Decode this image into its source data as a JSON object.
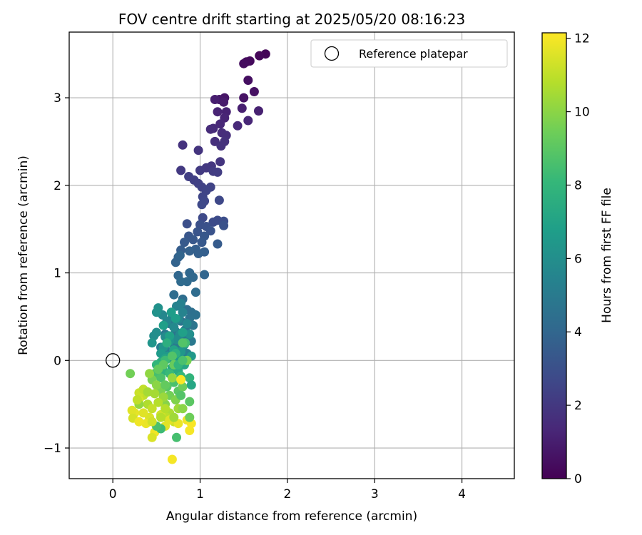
{
  "chart_data": {
    "type": "scatter",
    "title": "FOV centre drift starting at 2025/05/20 08:16:23",
    "xlabel": "Angular distance from reference (arcmin)",
    "ylabel": "Rotation from reference (arcmin)",
    "xlim": [
      -0.5,
      4.6
    ],
    "ylim": [
      -1.35,
      3.75
    ],
    "xticks": [
      0,
      1,
      2,
      3,
      4
    ],
    "yticks": [
      -1,
      0,
      1,
      2,
      3
    ],
    "grid": true,
    "legend": {
      "placement": "top-right",
      "entries": [
        "Reference platepar"
      ]
    },
    "reference_point": {
      "name": "Reference platepar",
      "x": 0.0,
      "y": 0.0
    },
    "colorbar": {
      "label": "Hours from first FF file",
      "range": [
        0,
        12.15
      ],
      "ticks": [
        0,
        2,
        4,
        6,
        8,
        10,
        12
      ],
      "colormap": "viridis"
    },
    "colormap_stops": [
      "#440154",
      "#482878",
      "#3e4989",
      "#31688e",
      "#26828e",
      "#1f9e89",
      "#35b779",
      "#6ece58",
      "#b5de2b",
      "#fde725"
    ],
    "point_columns": [
      "x",
      "y",
      "hours"
    ],
    "points": [
      [
        1.75,
        3.5,
        0.1
      ],
      [
        1.68,
        3.48,
        0.2
      ],
      [
        1.57,
        3.42,
        0.3
      ],
      [
        1.53,
        3.41,
        0.35
      ],
      [
        1.5,
        3.39,
        0.4
      ],
      [
        1.55,
        3.2,
        0.5
      ],
      [
        1.62,
        3.07,
        0.55
      ],
      [
        1.5,
        3.0,
        0.6
      ],
      [
        1.28,
        3.0,
        0.7
      ],
      [
        1.22,
        2.98,
        0.8
      ],
      [
        1.27,
        2.95,
        0.9
      ],
      [
        1.17,
        2.98,
        1.0
      ],
      [
        1.48,
        2.88,
        1.05
      ],
      [
        1.67,
        2.85,
        1.1
      ],
      [
        1.3,
        2.84,
        1.15
      ],
      [
        1.2,
        2.84,
        1.2
      ],
      [
        1.28,
        2.77,
        1.25
      ],
      [
        1.55,
        2.74,
        1.3
      ],
      [
        1.23,
        2.7,
        1.35
      ],
      [
        1.43,
        2.68,
        1.4
      ],
      [
        1.15,
        2.65,
        1.45
      ],
      [
        1.12,
        2.64,
        1.5
      ],
      [
        1.25,
        2.6,
        1.55
      ],
      [
        1.3,
        2.57,
        1.6
      ],
      [
        1.17,
        2.5,
        1.65
      ],
      [
        1.28,
        2.5,
        1.7
      ],
      [
        1.24,
        2.45,
        1.75
      ],
      [
        0.8,
        2.46,
        1.8
      ],
      [
        0.98,
        2.4,
        1.85
      ],
      [
        1.23,
        2.27,
        1.9
      ],
      [
        1.13,
        2.22,
        1.95
      ],
      [
        1.07,
        2.2,
        2.0
      ],
      [
        0.78,
        2.17,
        2.05
      ],
      [
        1.0,
        2.17,
        2.1
      ],
      [
        1.15,
        2.16,
        2.15
      ],
      [
        1.2,
        2.15,
        2.2
      ],
      [
        0.87,
        2.1,
        2.25
      ],
      [
        0.93,
        2.06,
        2.3
      ],
      [
        0.98,
        2.02,
        2.35
      ],
      [
        1.02,
        1.98,
        2.4
      ],
      [
        1.12,
        1.98,
        2.45
      ],
      [
        1.07,
        1.94,
        2.5
      ],
      [
        1.03,
        1.87,
        2.55
      ],
      [
        1.05,
        1.82,
        2.6
      ],
      [
        1.22,
        1.83,
        2.65
      ],
      [
        1.02,
        1.78,
        2.7
      ],
      [
        1.03,
        1.63,
        2.75
      ],
      [
        1.2,
        1.6,
        2.8
      ],
      [
        1.15,
        1.58,
        2.85
      ],
      [
        1.27,
        1.59,
        2.9
      ],
      [
        0.85,
        1.56,
        2.95
      ],
      [
        1.0,
        1.55,
        3.0
      ],
      [
        1.07,
        1.53,
        3.05
      ],
      [
        1.27,
        1.54,
        3.1
      ],
      [
        1.12,
        1.48,
        3.15
      ],
      [
        0.97,
        1.47,
        3.2
      ],
      [
        0.87,
        1.42,
        3.25
      ],
      [
        1.05,
        1.42,
        3.3
      ],
      [
        0.92,
        1.38,
        3.35
      ],
      [
        1.02,
        1.35,
        3.4
      ],
      [
        0.82,
        1.35,
        3.45
      ],
      [
        1.2,
        1.33,
        3.5
      ],
      [
        0.78,
        1.26,
        3.55
      ],
      [
        0.95,
        1.27,
        3.6
      ],
      [
        1.05,
        1.24,
        3.65
      ],
      [
        0.98,
        1.22,
        3.7
      ],
      [
        0.88,
        1.25,
        3.75
      ],
      [
        0.75,
        1.18,
        3.8
      ],
      [
        0.72,
        1.12,
        3.85
      ],
      [
        0.77,
        1.2,
        3.9
      ],
      [
        1.05,
        0.98,
        3.95
      ],
      [
        0.75,
        0.97,
        4.0
      ],
      [
        0.88,
        1.0,
        4.05
      ],
      [
        0.92,
        0.95,
        4.1
      ],
      [
        0.85,
        0.9,
        4.15
      ],
      [
        0.78,
        0.9,
        4.2
      ],
      [
        0.95,
        0.78,
        4.25
      ],
      [
        0.7,
        0.75,
        4.3
      ],
      [
        0.8,
        0.7,
        4.35
      ],
      [
        0.85,
        0.58,
        4.4
      ],
      [
        0.9,
        0.55,
        4.45
      ],
      [
        0.95,
        0.52,
        4.5
      ],
      [
        0.88,
        0.48,
        4.55
      ],
      [
        0.78,
        0.45,
        4.6
      ],
      [
        0.65,
        0.42,
        4.65
      ],
      [
        0.92,
        0.4,
        4.7
      ],
      [
        0.83,
        0.35,
        4.75
      ],
      [
        0.72,
        0.33,
        4.8
      ],
      [
        0.6,
        0.3,
        4.85
      ],
      [
        0.82,
        0.25,
        4.9
      ],
      [
        0.9,
        0.22,
        4.95
      ],
      [
        0.68,
        0.2,
        5.0
      ],
      [
        0.75,
        0.18,
        5.05
      ],
      [
        0.55,
        0.15,
        5.1
      ],
      [
        0.8,
        0.12,
        5.15
      ],
      [
        0.65,
        0.1,
        5.2
      ],
      [
        0.85,
        0.08,
        5.25
      ],
      [
        0.7,
        0.05,
        5.3
      ],
      [
        0.78,
        0.65,
        5.35
      ],
      [
        0.73,
        0.62,
        5.4
      ],
      [
        0.8,
        0.55,
        5.45
      ],
      [
        0.68,
        0.5,
        5.5
      ],
      [
        0.75,
        0.47,
        5.55
      ],
      [
        0.62,
        0.45,
        5.6
      ],
      [
        0.57,
        0.52,
        5.65
      ],
      [
        0.85,
        0.42,
        5.7
      ],
      [
        0.7,
        0.38,
        5.75
      ],
      [
        0.77,
        0.3,
        5.8
      ],
      [
        0.6,
        0.27,
        5.85
      ],
      [
        0.73,
        0.24,
        5.9
      ],
      [
        0.47,
        0.28,
        5.95
      ],
      [
        0.5,
        0.32,
        6.0
      ],
      [
        0.88,
        0.3,
        6.05
      ],
      [
        0.52,
        0.6,
        6.1
      ],
      [
        0.5,
        0.55,
        6.15
      ],
      [
        0.65,
        0.22,
        6.2
      ],
      [
        0.82,
        0.18,
        6.25
      ],
      [
        0.45,
        0.2,
        6.3
      ],
      [
        0.58,
        0.15,
        6.35
      ],
      [
        0.78,
        0.1,
        6.4
      ],
      [
        0.9,
        0.05,
        6.45
      ],
      [
        0.7,
        -0.02,
        6.5
      ],
      [
        0.63,
        0.05,
        6.55
      ],
      [
        0.55,
        0.08,
        6.6
      ],
      [
        0.75,
        0.02,
        6.65
      ],
      [
        0.67,
        0.55,
        6.7
      ],
      [
        0.72,
        0.48,
        6.75
      ],
      [
        0.58,
        0.4,
        6.8
      ],
      [
        0.8,
        0.32,
        6.85
      ],
      [
        0.65,
        0.28,
        6.9
      ],
      [
        0.7,
        0.12,
        7.0
      ],
      [
        0.6,
        0.02,
        7.1
      ],
      [
        0.82,
        -0.05,
        7.2
      ],
      [
        0.68,
        -0.08,
        7.3
      ],
      [
        0.75,
        -0.12,
        7.4
      ],
      [
        0.55,
        -0.02,
        7.5
      ],
      [
        0.62,
        0.2,
        7.6
      ],
      [
        0.72,
        0.08,
        7.7
      ],
      [
        0.58,
        -0.12,
        7.8
      ],
      [
        0.88,
        -0.2,
        7.9
      ],
      [
        0.5,
        -0.05,
        8.0
      ],
      [
        0.78,
        -0.18,
        8.1
      ],
      [
        0.65,
        -0.15,
        8.2
      ],
      [
        0.6,
        0.0,
        8.3
      ],
      [
        0.83,
        0.2,
        8.4
      ],
      [
        0.48,
        -0.15,
        8.5
      ],
      [
        0.7,
        -0.25,
        8.6
      ],
      [
        0.55,
        -0.2,
        8.7
      ],
      [
        0.68,
        0.05,
        8.8
      ],
      [
        0.62,
        -0.3,
        8.9
      ],
      [
        0.75,
        -0.35,
        9.0
      ],
      [
        0.58,
        -0.05,
        9.1
      ],
      [
        0.52,
        -0.1,
        9.2
      ],
      [
        0.7,
        -0.05,
        9.3
      ],
      [
        0.8,
        -0.3,
        9.4
      ],
      [
        0.65,
        -0.4,
        9.5
      ],
      [
        0.45,
        -0.22,
        9.6
      ],
      [
        0.55,
        -0.35,
        9.7
      ],
      [
        0.72,
        -0.45,
        9.8
      ],
      [
        0.6,
        -0.5,
        9.9
      ],
      [
        0.5,
        -0.28,
        10.0
      ],
      [
        0.42,
        -0.15,
        10.1
      ],
      [
        0.68,
        -0.2,
        10.2
      ],
      [
        0.58,
        -0.42,
        10.3
      ],
      [
        0.75,
        -0.55,
        10.4
      ],
      [
        0.48,
        -0.38,
        10.5
      ],
      [
        0.65,
        -0.6,
        10.6
      ],
      [
        0.4,
        -0.5,
        10.7
      ],
      [
        0.52,
        -0.48,
        10.8
      ],
      [
        0.62,
        -0.65,
        10.9
      ],
      [
        0.35,
        -0.4,
        11.0
      ],
      [
        0.45,
        -0.55,
        11.1
      ],
      [
        0.7,
        -0.7,
        11.2
      ],
      [
        0.55,
        -0.62,
        11.3
      ],
      [
        0.3,
        -0.45,
        11.4
      ],
      [
        0.42,
        -0.65,
        11.5
      ],
      [
        0.6,
        -0.75,
        11.6
      ],
      [
        0.25,
        -0.6,
        11.7
      ],
      [
        0.38,
        -0.72,
        11.8
      ],
      [
        0.48,
        -0.82,
        11.9
      ],
      [
        0.2,
        -0.15,
        9.5
      ],
      [
        0.55,
        -0.78,
        8.3
      ],
      [
        0.45,
        -0.88,
        11.5
      ],
      [
        0.65,
        -0.68,
        11.6
      ],
      [
        0.75,
        -0.72,
        11.8
      ],
      [
        0.85,
        -0.68,
        11.9
      ],
      [
        0.88,
        -0.8,
        12.0
      ],
      [
        0.9,
        -0.72,
        12.05
      ],
      [
        0.78,
        -0.22,
        12.1
      ],
      [
        0.68,
        -1.13,
        12.0
      ],
      [
        0.73,
        -0.88,
        8.5
      ],
      [
        0.88,
        -0.65,
        9.4
      ],
      [
        0.88,
        -0.47,
        9.0
      ],
      [
        0.9,
        -0.28,
        7.2
      ],
      [
        0.78,
        -0.4,
        8.8
      ],
      [
        0.22,
        -0.57,
        11.6
      ],
      [
        0.23,
        -0.66,
        11.4
      ],
      [
        0.3,
        -0.37,
        11.2
      ],
      [
        0.35,
        -0.33,
        11.0
      ],
      [
        0.4,
        -0.36,
        10.5
      ],
      [
        0.6,
        -0.55,
        10.8
      ],
      [
        0.8,
        0.2,
        8.8
      ],
      [
        0.3,
        -0.5,
        10.2
      ],
      [
        0.5,
        -0.75,
        8.6
      ],
      [
        0.45,
        -0.7,
        11.3
      ],
      [
        0.28,
        -0.45,
        11.0
      ],
      [
        0.7,
        -0.65,
        10.4
      ],
      [
        0.8,
        -0.55,
        10.0
      ],
      [
        0.85,
        0.0,
        9.6
      ],
      [
        0.3,
        -0.7,
        11.9
      ],
      [
        0.35,
        -0.6,
        11.6
      ],
      [
        0.55,
        -0.65,
        10.8
      ],
      [
        0.6,
        -0.28,
        9.2
      ],
      [
        0.75,
        -0.05,
        8.0
      ],
      [
        0.8,
        0.0,
        8.6
      ]
    ]
  }
}
